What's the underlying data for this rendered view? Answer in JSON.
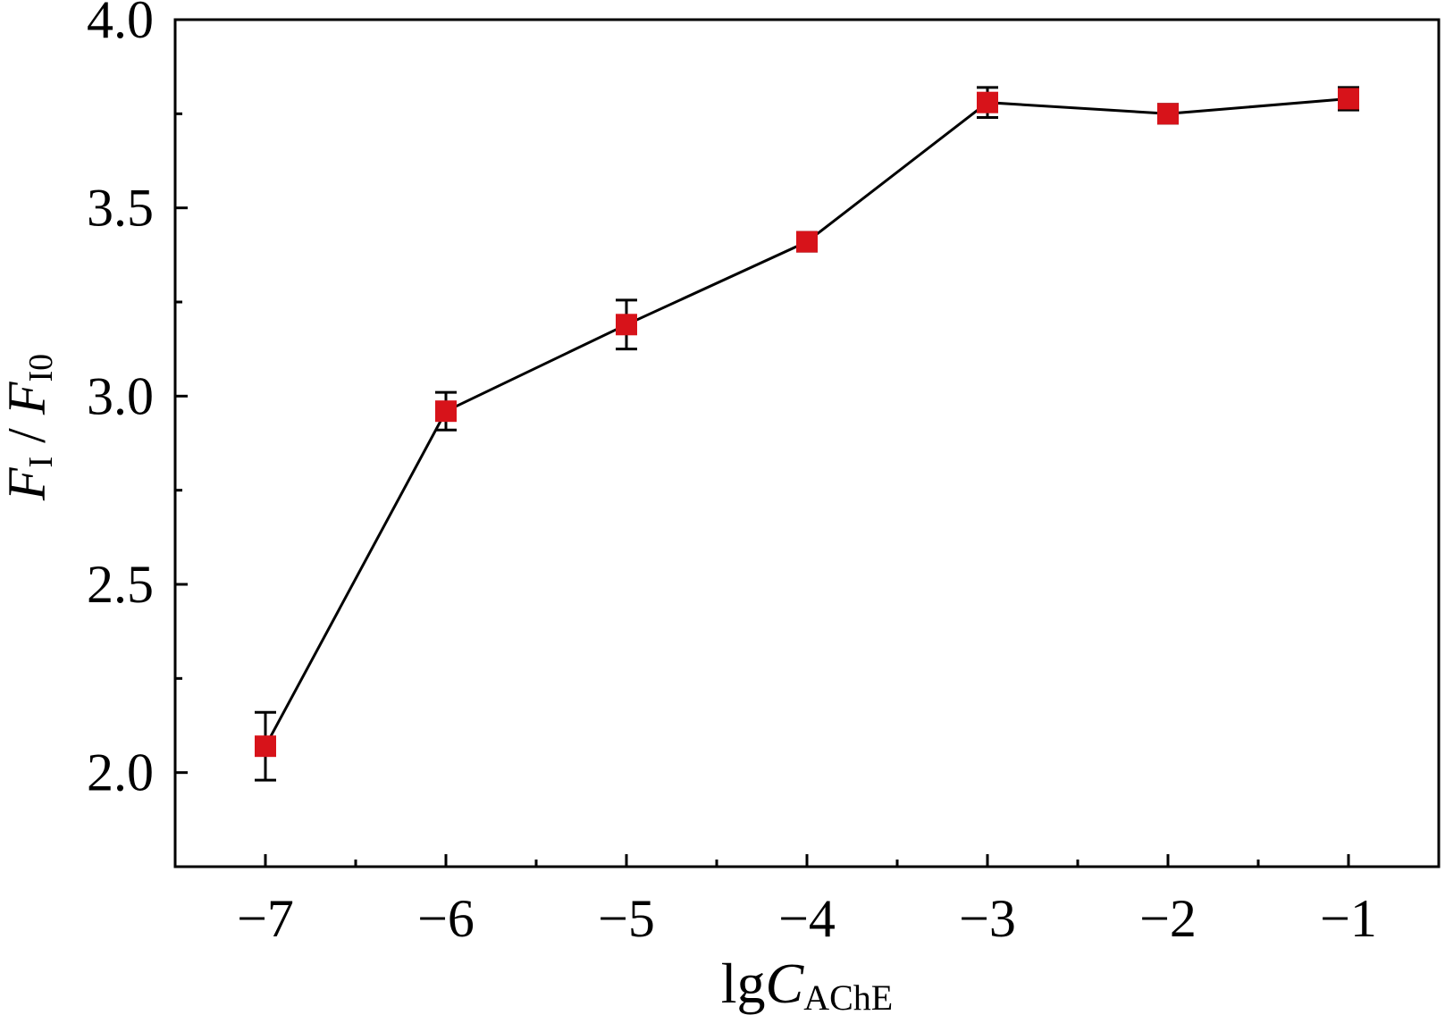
{
  "chart_data": {
    "type": "line",
    "xlabel": {
      "main": "lg",
      "italic": "C",
      "sub": "AChE"
    },
    "ylabel": {
      "num_italic": "F",
      "num_sub": "I",
      "sep": " / ",
      "den_italic": "F",
      "den_sub": "I0"
    },
    "xlim": [
      -7.5,
      -0.5
    ],
    "ylim": [
      1.75,
      4.0
    ],
    "x_ticks": [
      -7,
      -6,
      -5,
      -4,
      -3,
      -2,
      -1
    ],
    "x_tick_labels": [
      "−7",
      "−6",
      "−5",
      "−4",
      "−3",
      "−2",
      "−1"
    ],
    "y_ticks": [
      2.0,
      2.5,
      3.0,
      3.5,
      4.0
    ],
    "y_tick_labels": [
      "2.0",
      "2.5",
      "3.0",
      "3.5",
      "4.0"
    ],
    "grid": false,
    "marker_color": "#d7131a",
    "line_color": "#000000",
    "series": [
      {
        "x": [
          -7,
          -6,
          -5,
          -4,
          -3,
          -2,
          -1
        ],
        "y": [
          2.07,
          2.96,
          3.19,
          3.41,
          3.78,
          3.75,
          3.79
        ],
        "err": [
          0.09,
          0.05,
          0.065,
          0.025,
          0.04,
          0.025,
          0.03
        ]
      }
    ]
  }
}
